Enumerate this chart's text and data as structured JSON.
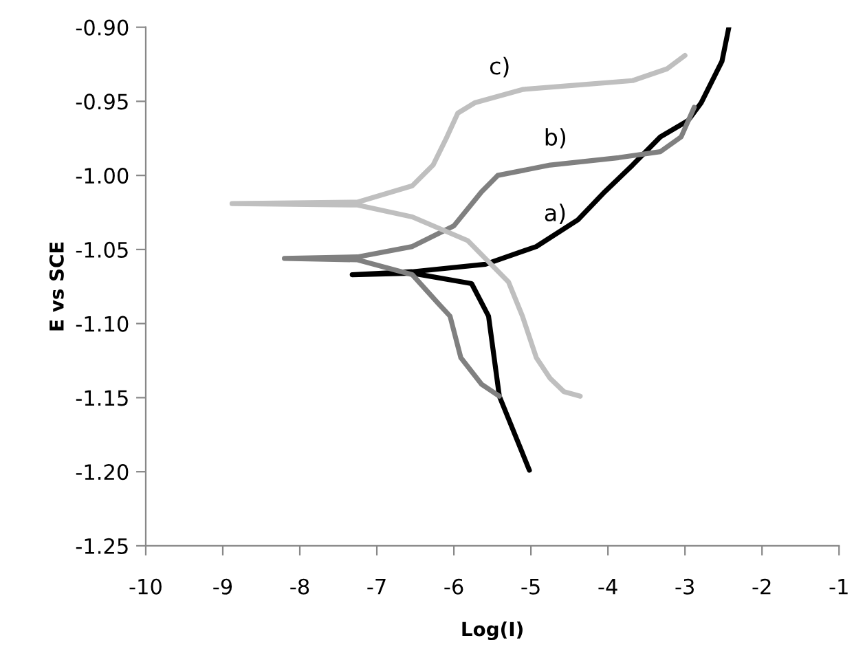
{
  "chart_data": {
    "type": "line",
    "xlabel": "Log(I)",
    "ylabel": "E vs SCE",
    "xlim": [
      -10,
      -1
    ],
    "xticks": [
      -10,
      -9,
      -8,
      -7,
      -6,
      -5,
      -4,
      -3,
      -2,
      -1
    ],
    "ylim": [
      -1.25,
      -0.9
    ],
    "yticks": [
      {
        "value": -1.25,
        "label": "-1.25"
      },
      {
        "value": -1.2,
        "label": "-1.20"
      },
      {
        "value": -1.15,
        "label": "-1.15"
      },
      {
        "value": -1.1,
        "label": "-1.10"
      },
      {
        "value": -1.05,
        "label": "-1.05"
      },
      {
        "value": -1.0,
        "label": "-1.00"
      },
      {
        "value": -0.95,
        "label": "-0.95"
      },
      {
        "value": -0.9,
        "label": "-0.90"
      }
    ],
    "grid": false,
    "marker": "none",
    "line_style": "solid",
    "series": [
      {
        "color": "#000000",
        "x": [
          -5.02,
          -5.41,
          -5.55,
          -5.77,
          -6.54,
          -7.32,
          -6.54,
          -5.59,
          -4.93,
          -4.39,
          -4.04,
          -3.68,
          -3.32,
          -2.96,
          -2.79,
          -2.52,
          -2.43
        ],
        "values": [
          -1.199,
          -1.149,
          -1.095,
          -1.073,
          -1.066,
          -1.067,
          -1.065,
          -1.06,
          -1.048,
          -1.03,
          -1.011,
          -0.993,
          -0.974,
          -0.963,
          -0.951,
          -0.923,
          -0.9
        ]
      },
      {
        "color": "#808080",
        "x": [
          -5.41,
          -5.64,
          -5.91,
          -6.05,
          -6.21,
          -6.54,
          -7.25,
          -8.2,
          -7.25,
          -6.54,
          -6.0,
          -5.64,
          -5.43,
          -4.75,
          -3.86,
          -3.32,
          -3.05,
          -2.88
        ],
        "values": [
          -1.149,
          -1.141,
          -1.123,
          -1.095,
          -1.086,
          -1.067,
          -1.057,
          -1.056,
          -1.055,
          -1.048,
          -1.034,
          -1.011,
          -1.0,
          -0.993,
          -0.988,
          -0.984,
          -0.974,
          -0.954
        ]
      },
      {
        "color": "#bfbfbf",
        "x": [
          -4.36,
          -4.57,
          -4.75,
          -4.93,
          -5.11,
          -5.29,
          -5.82,
          -6.54,
          -7.25,
          -8.88,
          -7.25,
          -6.54,
          -6.27,
          -6.09,
          -5.95,
          -5.73,
          -5.11,
          -4.39,
          -3.68,
          -3.23,
          -3.0
        ],
        "values": [
          -1.149,
          -1.146,
          -1.137,
          -1.123,
          -1.095,
          -1.072,
          -1.044,
          -1.028,
          -1.02,
          -1.019,
          -1.018,
          -1.007,
          -0.993,
          -0.974,
          -0.958,
          -0.951,
          -0.942,
          -0.939,
          -0.936,
          -0.928,
          -0.919
        ]
      }
    ],
    "annotations": [
      "a)",
      "b)",
      "c)"
    ]
  }
}
